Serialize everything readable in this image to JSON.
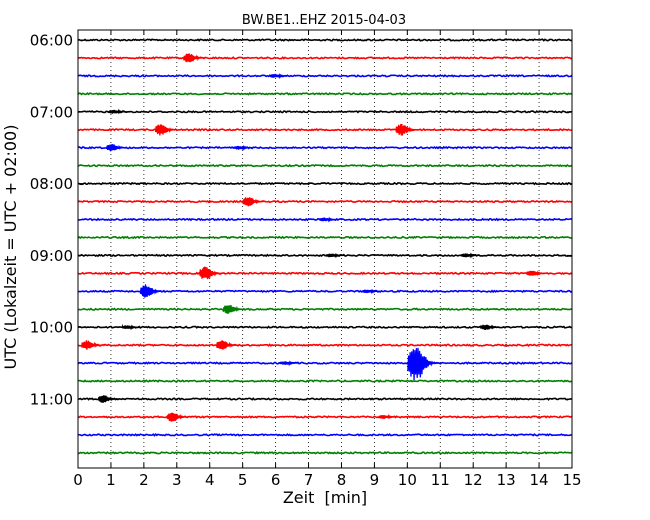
{
  "chart_data": {
    "type": "line",
    "title": "BW.BE1..EHZ 2015-04-03",
    "xlabel": "Zeit  [min]",
    "ylabel": "UTC (Lokalzeit = UTC + 02:00)",
    "xlim": [
      0,
      15
    ],
    "xticks": [
      "0",
      "1",
      "2",
      "3",
      "4",
      "5",
      "6",
      "7",
      "8",
      "9",
      "10",
      "11",
      "12",
      "13",
      "14",
      "15"
    ],
    "yticks": [
      {
        "label": "06:00",
        "row": 0
      },
      {
        "label": "07:00",
        "row": 4
      },
      {
        "label": "08:00",
        "row": 8
      },
      {
        "label": "09:00",
        "row": 12
      },
      {
        "label": "10:00",
        "row": 16
      },
      {
        "label": "11:00",
        "row": 20
      }
    ],
    "grid": "vertical-dotted",
    "colors": [
      "#000000",
      "#ff0000",
      "#0000ff",
      "#008000"
    ],
    "rows": [
      {
        "start": "06:00",
        "events": []
      },
      {
        "start": "06:15",
        "events": [
          {
            "t": 3.4,
            "amp": 5
          }
        ]
      },
      {
        "start": "06:30",
        "events": [
          {
            "t": 6.0,
            "amp": 2
          }
        ]
      },
      {
        "start": "06:45",
        "events": []
      },
      {
        "start": "07:00",
        "events": [
          {
            "t": 1.1,
            "amp": 2
          }
        ]
      },
      {
        "start": "07:15",
        "events": [
          {
            "t": 2.55,
            "amp": 6
          },
          {
            "t": 9.85,
            "amp": 6
          }
        ]
      },
      {
        "start": "07:30",
        "events": [
          {
            "t": 1.05,
            "amp": 4
          },
          {
            "t": 4.9,
            "amp": 2
          }
        ]
      },
      {
        "start": "07:45",
        "events": []
      },
      {
        "start": "08:00",
        "events": []
      },
      {
        "start": "08:15",
        "events": [
          {
            "t": 5.2,
            "amp": 5
          }
        ]
      },
      {
        "start": "08:30",
        "events": [
          {
            "t": 7.5,
            "amp": 2
          }
        ]
      },
      {
        "start": "08:45",
        "events": []
      },
      {
        "start": "09:00",
        "events": [
          {
            "t": 7.7,
            "amp": 2
          },
          {
            "t": 11.8,
            "amp": 2
          }
        ]
      },
      {
        "start": "09:15",
        "events": [
          {
            "t": 3.9,
            "amp": 7
          },
          {
            "t": 13.8,
            "amp": 3
          }
        ]
      },
      {
        "start": "09:30",
        "events": [
          {
            "t": 2.1,
            "amp": 7
          },
          {
            "t": 8.8,
            "amp": 2
          }
        ]
      },
      {
        "start": "09:45",
        "events": [
          {
            "t": 4.6,
            "amp": 5
          }
        ]
      },
      {
        "start": "10:00",
        "events": [
          {
            "t": 1.5,
            "amp": 2
          },
          {
            "t": 12.4,
            "amp": 3
          }
        ]
      },
      {
        "start": "10:15",
        "events": [
          {
            "t": 0.3,
            "amp": 5
          },
          {
            "t": 4.4,
            "amp": 5
          }
        ]
      },
      {
        "start": "10:30",
        "events": [
          {
            "t": 10.3,
            "amp": 18
          },
          {
            "t": 6.3,
            "amp": 2
          }
        ]
      },
      {
        "start": "10:45",
        "events": []
      },
      {
        "start": "11:00",
        "events": [
          {
            "t": 0.8,
            "amp": 4
          }
        ]
      },
      {
        "start": "11:15",
        "events": [
          {
            "t": 2.9,
            "amp": 5
          },
          {
            "t": 9.3,
            "amp": 2
          }
        ]
      },
      {
        "start": "11:30",
        "events": []
      },
      {
        "start": "11:45",
        "events": []
      }
    ]
  }
}
